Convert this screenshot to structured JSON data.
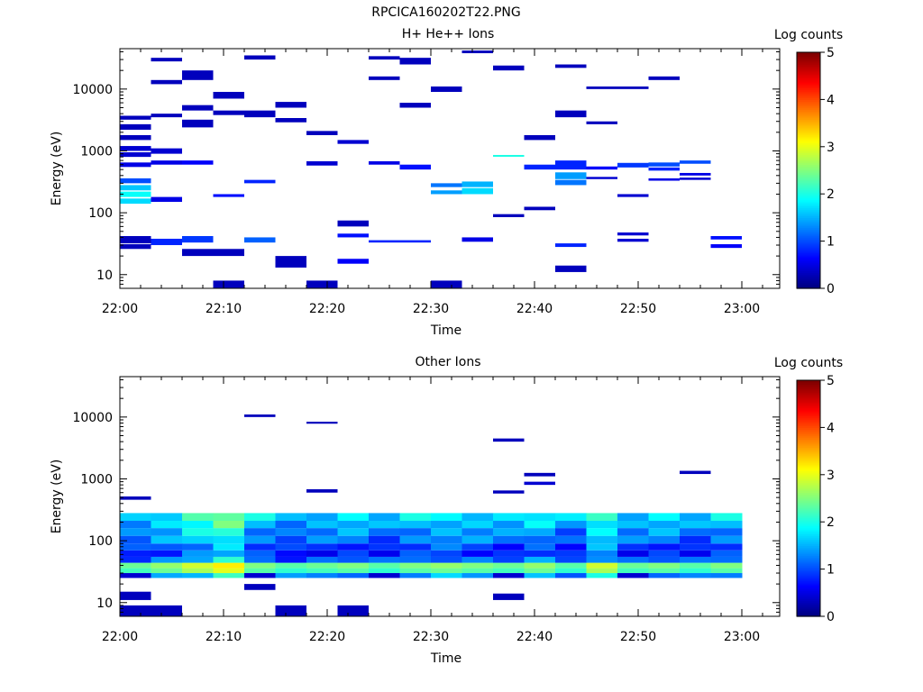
{
  "figure_title": "RPCICA160202T22.PNG",
  "chart_data": [
    {
      "type": "heatmap",
      "title": "H+ He++ Ions",
      "xlabel": "Time",
      "ylabel": "Energy (eV)",
      "x_scale": "time",
      "x_ticks": [
        "22:00",
        "22:10",
        "22:20",
        "22:30",
        "22:40",
        "22:50",
        "23:00"
      ],
      "y_scale": "log",
      "y_range_eV": [
        6,
        45000
      ],
      "y_ticks": [
        "10",
        "100",
        "1000",
        "10000"
      ],
      "colorbar": {
        "label": "Log counts",
        "range": [
          0,
          5
        ],
        "ticks": [
          "0",
          "1",
          "2",
          "3",
          "4",
          "5"
        ]
      },
      "time_bins": [
        "22:00",
        "22:03",
        "22:06",
        "22:09",
        "22:12",
        "22:15",
        "22:18",
        "22:21",
        "22:24",
        "22:27",
        "22:30",
        "22:33",
        "22:36",
        "22:39",
        "22:42",
        "22:45",
        "22:48",
        "22:51",
        "22:54",
        "22:57",
        "23:00"
      ],
      "cells": [
        {
          "t": 0,
          "e_lo": 3200,
          "e_hi": 3700,
          "v": 0.3
        },
        {
          "t": 0,
          "e_lo": 2200,
          "e_hi": 2700,
          "v": 0.3
        },
        {
          "t": 0,
          "e_lo": 1500,
          "e_hi": 1800,
          "v": 0.3
        },
        {
          "t": 0,
          "e_lo": 1000,
          "e_hi": 1200,
          "v": 0.4
        },
        {
          "t": 0,
          "e_lo": 800,
          "e_hi": 950,
          "v": 0.4
        },
        {
          "t": 0,
          "e_lo": 550,
          "e_hi": 650,
          "v": 0.5
        },
        {
          "t": 0,
          "e_lo": 300,
          "e_hi": 360,
          "v": 1.0
        },
        {
          "t": 0,
          "e_lo": 230,
          "e_hi": 280,
          "v": 1.6
        },
        {
          "t": 0,
          "e_lo": 180,
          "e_hi": 220,
          "v": 1.9
        },
        {
          "t": 0,
          "e_lo": 140,
          "e_hi": 170,
          "v": 1.7
        },
        {
          "t": 0,
          "e_lo": 32,
          "e_hi": 42,
          "v": 0.3
        },
        {
          "t": 0,
          "e_lo": 26,
          "e_hi": 31,
          "v": 0.3
        },
        {
          "t": 1,
          "e_lo": 28000,
          "e_hi": 32000,
          "v": 0.3
        },
        {
          "t": 1,
          "e_lo": 12000,
          "e_hi": 14000,
          "v": 0.3
        },
        {
          "t": 1,
          "e_lo": 3500,
          "e_hi": 4000,
          "v": 0.3
        },
        {
          "t": 1,
          "e_lo": 900,
          "e_hi": 1100,
          "v": 0.4
        },
        {
          "t": 1,
          "e_lo": 600,
          "e_hi": 700,
          "v": 0.5
        },
        {
          "t": 1,
          "e_lo": 150,
          "e_hi": 180,
          "v": 0.5
        },
        {
          "t": 1,
          "e_lo": 30,
          "e_hi": 38,
          "v": 0.8
        },
        {
          "t": 2,
          "e_lo": 14000,
          "e_hi": 20000,
          "v": 0.3
        },
        {
          "t": 2,
          "e_lo": 4500,
          "e_hi": 5500,
          "v": 0.3
        },
        {
          "t": 2,
          "e_lo": 2400,
          "e_hi": 3200,
          "v": 0.3
        },
        {
          "t": 2,
          "e_lo": 600,
          "e_hi": 700,
          "v": 0.6
        },
        {
          "t": 2,
          "e_lo": 33,
          "e_hi": 42,
          "v": 0.9
        },
        {
          "t": 2,
          "e_lo": 20,
          "e_hi": 26,
          "v": 0.3
        },
        {
          "t": 3,
          "e_lo": 7000,
          "e_hi": 9000,
          "v": 0.3
        },
        {
          "t": 3,
          "e_lo": 3800,
          "e_hi": 4500,
          "v": 0.3
        },
        {
          "t": 3,
          "e_lo": 180,
          "e_hi": 200,
          "v": 0.7
        },
        {
          "t": 3,
          "e_lo": 20,
          "e_hi": 26,
          "v": 0.3
        },
        {
          "t": 3,
          "e_lo": 6,
          "e_hi": 8,
          "v": 0.3
        },
        {
          "t": 4,
          "e_lo": 30000,
          "e_hi": 35000,
          "v": 0.3
        },
        {
          "t": 4,
          "e_lo": 3500,
          "e_hi": 4500,
          "v": 0.3
        },
        {
          "t": 4,
          "e_lo": 300,
          "e_hi": 340,
          "v": 0.8
        },
        {
          "t": 4,
          "e_lo": 33,
          "e_hi": 40,
          "v": 1.1
        },
        {
          "t": 5,
          "e_lo": 5000,
          "e_hi": 6200,
          "v": 0.3
        },
        {
          "t": 5,
          "e_lo": 2900,
          "e_hi": 3400,
          "v": 0.3
        },
        {
          "t": 5,
          "e_lo": 13,
          "e_hi": 20,
          "v": 0.3
        },
        {
          "t": 6,
          "e_lo": 1800,
          "e_hi": 2100,
          "v": 0.3
        },
        {
          "t": 6,
          "e_lo": 580,
          "e_hi": 680,
          "v": 0.4
        },
        {
          "t": 6,
          "e_lo": 6,
          "e_hi": 8,
          "v": 0.3
        },
        {
          "t": 7,
          "e_lo": 1300,
          "e_hi": 1500,
          "v": 0.4
        },
        {
          "t": 7,
          "e_lo": 60,
          "e_hi": 75,
          "v": 0.3
        },
        {
          "t": 7,
          "e_lo": 40,
          "e_hi": 46,
          "v": 0.7
        },
        {
          "t": 7,
          "e_lo": 15,
          "e_hi": 18,
          "v": 0.6
        },
        {
          "t": 8,
          "e_lo": 30000,
          "e_hi": 34000,
          "v": 0.3
        },
        {
          "t": 8,
          "e_lo": 14000,
          "e_hi": 16000,
          "v": 0.3
        },
        {
          "t": 8,
          "e_lo": 600,
          "e_hi": 680,
          "v": 0.5
        },
        {
          "t": 8,
          "e_lo": 33,
          "e_hi": 36,
          "v": 0.8
        },
        {
          "t": 9,
          "e_lo": 25000,
          "e_hi": 32000,
          "v": 0.3
        },
        {
          "t": 9,
          "e_lo": 5000,
          "e_hi": 6000,
          "v": 0.3
        },
        {
          "t": 9,
          "e_lo": 500,
          "e_hi": 600,
          "v": 0.7
        },
        {
          "t": 9,
          "e_lo": 33,
          "e_hi": 36,
          "v": 0.8
        },
        {
          "t": 10,
          "e_lo": 9000,
          "e_hi": 11000,
          "v": 0.3
        },
        {
          "t": 10,
          "e_lo": 260,
          "e_hi": 300,
          "v": 1.2
        },
        {
          "t": 10,
          "e_lo": 200,
          "e_hi": 230,
          "v": 1.4
        },
        {
          "t": 10,
          "e_lo": 6,
          "e_hi": 8,
          "v": 0.3
        },
        {
          "t": 11,
          "e_lo": 38000,
          "e_hi": 42000,
          "v": 0.3
        },
        {
          "t": 11,
          "e_lo": 260,
          "e_hi": 320,
          "v": 1.5
        },
        {
          "t": 11,
          "e_lo": 200,
          "e_hi": 250,
          "v": 1.7
        },
        {
          "t": 11,
          "e_lo": 34,
          "e_hi": 40,
          "v": 0.5
        },
        {
          "t": 12,
          "e_lo": 20000,
          "e_hi": 24000,
          "v": 0.3
        },
        {
          "t": 12,
          "e_lo": 820,
          "e_hi": 860,
          "v": 2.0
        },
        {
          "t": 12,
          "e_lo": 85,
          "e_hi": 95,
          "v": 0.3
        },
        {
          "t": 13,
          "e_lo": 1500,
          "e_hi": 1800,
          "v": 0.3
        },
        {
          "t": 13,
          "e_lo": 500,
          "e_hi": 600,
          "v": 0.8
        },
        {
          "t": 13,
          "e_lo": 110,
          "e_hi": 125,
          "v": 0.3
        },
        {
          "t": 14,
          "e_lo": 22000,
          "e_hi": 25000,
          "v": 0.3
        },
        {
          "t": 14,
          "e_lo": 3500,
          "e_hi": 4500,
          "v": 0.3
        },
        {
          "t": 14,
          "e_lo": 500,
          "e_hi": 700,
          "v": 0.8
        },
        {
          "t": 14,
          "e_lo": 350,
          "e_hi": 450,
          "v": 1.4
        },
        {
          "t": 14,
          "e_lo": 280,
          "e_hi": 340,
          "v": 1.2
        },
        {
          "t": 14,
          "e_lo": 28,
          "e_hi": 32,
          "v": 0.8
        },
        {
          "t": 14,
          "e_lo": 11,
          "e_hi": 14,
          "v": 0.3
        },
        {
          "t": 15,
          "e_lo": 10000,
          "e_hi": 11000,
          "v": 0.3
        },
        {
          "t": 15,
          "e_lo": 2700,
          "e_hi": 3000,
          "v": 0.3
        },
        {
          "t": 15,
          "e_lo": 500,
          "e_hi": 560,
          "v": 0.6
        },
        {
          "t": 15,
          "e_lo": 350,
          "e_hi": 380,
          "v": 0.4
        },
        {
          "t": 16,
          "e_lo": 10000,
          "e_hi": 11000,
          "v": 0.3
        },
        {
          "t": 16,
          "e_lo": 540,
          "e_hi": 640,
          "v": 0.9
        },
        {
          "t": 16,
          "e_lo": 180,
          "e_hi": 200,
          "v": 0.4
        },
        {
          "t": 16,
          "e_lo": 43,
          "e_hi": 48,
          "v": 0.4
        },
        {
          "t": 16,
          "e_lo": 34,
          "e_hi": 38,
          "v": 0.4
        },
        {
          "t": 17,
          "e_lo": 14000,
          "e_hi": 16000,
          "v": 0.3
        },
        {
          "t": 17,
          "e_lo": 560,
          "e_hi": 650,
          "v": 1.0
        },
        {
          "t": 17,
          "e_lo": 480,
          "e_hi": 540,
          "v": 0.8
        },
        {
          "t": 17,
          "e_lo": 330,
          "e_hi": 360,
          "v": 0.5
        },
        {
          "t": 18,
          "e_lo": 620,
          "e_hi": 700,
          "v": 1.0
        },
        {
          "t": 18,
          "e_lo": 400,
          "e_hi": 440,
          "v": 0.5
        },
        {
          "t": 18,
          "e_lo": 340,
          "e_hi": 370,
          "v": 0.4
        },
        {
          "t": 19,
          "e_lo": 37,
          "e_hi": 42,
          "v": 0.7
        },
        {
          "t": 19,
          "e_lo": 27,
          "e_hi": 31,
          "v": 0.6
        }
      ]
    },
    {
      "type": "heatmap",
      "title": "Other Ions",
      "xlabel": "Time",
      "ylabel": "Energy (eV)",
      "x_scale": "time",
      "x_ticks": [
        "22:00",
        "22:10",
        "22:20",
        "22:30",
        "22:40",
        "22:50",
        "23:00"
      ],
      "y_scale": "log",
      "y_range_eV": [
        6,
        45000
      ],
      "y_ticks": [
        "10",
        "100",
        "1000",
        "10000"
      ],
      "colorbar": {
        "label": "Log counts",
        "range": [
          0,
          5
        ],
        "ticks": [
          "0",
          "1",
          "2",
          "3",
          "4",
          "5"
        ]
      },
      "time_bins": [
        "22:00",
        "22:03",
        "22:06",
        "22:09",
        "22:12",
        "22:15",
        "22:18",
        "22:21",
        "22:24",
        "22:27",
        "22:30",
        "22:33",
        "22:36",
        "22:39",
        "22:42",
        "22:45",
        "22:48",
        "22:51",
        "22:54",
        "22:57",
        "23:00"
      ],
      "cells": [
        {
          "t": 4,
          "e_lo": 10000,
          "e_hi": 11000,
          "v": 0.3
        },
        {
          "t": 6,
          "e_lo": 7800,
          "e_hi": 8400,
          "v": 0.3
        },
        {
          "t": 12,
          "e_lo": 4000,
          "e_hi": 4500,
          "v": 0.3
        },
        {
          "t": 13,
          "e_lo": 1100,
          "e_hi": 1250,
          "v": 0.3
        },
        {
          "t": 13,
          "e_lo": 800,
          "e_hi": 900,
          "v": 0.4
        },
        {
          "t": 18,
          "e_lo": 1200,
          "e_hi": 1350,
          "v": 0.3
        },
        {
          "t": 0,
          "e_lo": 460,
          "e_hi": 520,
          "v": 0.3
        },
        {
          "t": 6,
          "e_lo": 600,
          "e_hi": 680,
          "v": 0.3
        },
        {
          "t": 12,
          "e_lo": 580,
          "e_hi": 650,
          "v": 0.3
        },
        {
          "t": 0,
          "e_lo": 11,
          "e_hi": 15,
          "v": 0.3
        },
        {
          "t": 0,
          "e_lo": 6,
          "e_hi": 9,
          "v": 0.3
        },
        {
          "t": 1,
          "e_lo": 6,
          "e_hi": 9,
          "v": 0.3
        },
        {
          "t": 5,
          "e_lo": 6,
          "e_hi": 9,
          "v": 0.3
        },
        {
          "t": 7,
          "e_lo": 6,
          "e_hi": 9,
          "v": 0.3
        },
        {
          "t": 12,
          "e_lo": 11,
          "e_hi": 14,
          "v": 0.3
        },
        {
          "t": 4,
          "e_lo": 16,
          "e_hi": 20,
          "v": 0.3
        }
      ],
      "band": {
        "description": "dense continuous band between ~25 eV and ~400 eV",
        "peak_row_eV": [
          32,
          44
        ],
        "peak_log_counts": [
          2.4,
          2.6,
          2.9,
          3.2,
          2.5,
          2.3,
          2.4,
          2.5,
          2.3,
          2.5,
          2.6,
          2.5,
          2.4,
          2.6,
          2.3,
          2.9,
          2.4,
          2.5,
          2.3,
          2.5
        ]
      }
    }
  ]
}
